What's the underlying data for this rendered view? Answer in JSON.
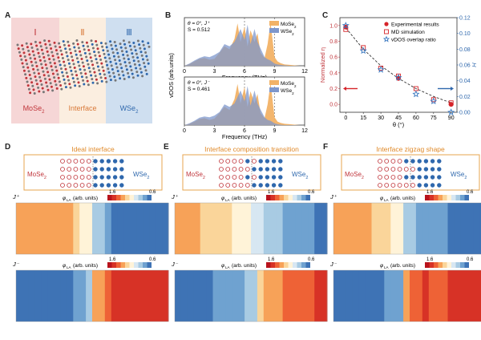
{
  "panels": {
    "A": {
      "label": "A",
      "regions": [
        {
          "numeral": "Ⅰ",
          "name_main": "MoSe",
          "name_sub": "2",
          "color": "#c0353b",
          "bg": "#f6d6d6"
        },
        {
          "numeral": "Ⅱ",
          "name_main": "Interface",
          "name_sub": "",
          "color": "#d97a3a",
          "bg": "#fbeee0"
        },
        {
          "numeral": "Ⅲ",
          "name_main": "WSe",
          "name_sub": "2",
          "color": "#2f68ad",
          "bg": "#cfdff0"
        }
      ]
    },
    "B": {
      "label": "B",
      "ylabel": "vDOS (arb.units)",
      "xlabel": "Frequency (THz)",
      "xticks": [
        "0",
        "3",
        "6",
        "9",
        "12"
      ],
      "legend": [
        {
          "main": "MoSe",
          "sub": "2",
          "color": "#f2b266"
        },
        {
          "main": "WSe",
          "sub": "2",
          "color": "#7e97cc"
        }
      ],
      "subplots": [
        {
          "info1": "θ = 0°, J⁺",
          "info2": "S = 0.512"
        },
        {
          "info1": "θ = 0°, J⁻",
          "info2": "S = 0.461"
        }
      ]
    },
    "C": {
      "label": "C",
      "ylabel_left": "Normalized η",
      "ylabel_right": "H",
      "xlabel": "θ (°)",
      "legend": [
        "Experimental results",
        "MD simulation",
        "vDOS overlap ratio"
      ]
    },
    "D": {
      "label": "D",
      "title": "Ideal interface",
      "mat_left_main": "MoSe",
      "mat_left_sub": "2",
      "mat_right_main": "WSe",
      "mat_right_sub": "2",
      "cb_label": "φ",
      "cb_sub": "LA",
      "cb_unit": " (arb. units)",
      "cb_min": "1.6",
      "cb_max": "0.6",
      "map_top": "J⁺",
      "map_bottom": "J⁻"
    },
    "E": {
      "label": "E",
      "title": "Interface composition transition",
      "mat_left_main": "MoSe",
      "mat_left_sub": "2",
      "mat_right_main": "WSe",
      "mat_right_sub": "2",
      "cb_label": "φ",
      "cb_sub": "LA",
      "cb_unit": " (arb. units)",
      "cb_min": "1.6",
      "cb_max": "0.6",
      "map_top": "J⁺",
      "map_bottom": "J⁻"
    },
    "F": {
      "label": "F",
      "title": "Interface zigzag shape",
      "mat_left_main": "MoSe",
      "mat_left_sub": "2",
      "mat_right_main": "WSe",
      "mat_right_sub": "2",
      "cb_label": "φ",
      "cb_sub": "LA",
      "cb_unit": " (arb. units)",
      "cb_min": "1.6",
      "cb_max": "0.6",
      "map_top": "J⁺",
      "map_bottom": "J⁻"
    }
  },
  "chart_data": [
    {
      "type": "area",
      "title": "",
      "xlabel": "Frequency (THz)",
      "ylabel": "vDOS (arb.units)",
      "xlim": [
        0,
        12
      ],
      "annotations": [
        "θ = 0°, J⁺",
        "S = 0.512"
      ],
      "series": [
        {
          "name": "MoSe2",
          "color": "#f2b266",
          "x": [
            0,
            0.5,
            1,
            1.5,
            2,
            2.5,
            3,
            3.5,
            4,
            4.5,
            5,
            5.3,
            5.6,
            6,
            6.3,
            6.6,
            7,
            7.3,
            7.6,
            8,
            8.3,
            8.6,
            9,
            9.3,
            9.6,
            10,
            10.5,
            11,
            11.5,
            12
          ],
          "y": [
            0,
            0.04,
            0.1,
            0.16,
            0.18,
            0.14,
            0.16,
            0.3,
            0.45,
            0.38,
            0.62,
            0.98,
            0.55,
            0.9,
            0.45,
            0.82,
            0.55,
            0.75,
            0.3,
            0.18,
            0.5,
            1.0,
            0.2,
            0.1,
            0.06,
            0.03,
            0.02,
            0.01,
            0.0,
            0
          ]
        },
        {
          "name": "WSe2",
          "color": "#7e97cc",
          "x": [
            0,
            0.5,
            1,
            1.5,
            2,
            2.5,
            3,
            3.5,
            4,
            4.5,
            5,
            5.3,
            5.6,
            6,
            6.3,
            6.6,
            7,
            7.3,
            7.6,
            8,
            8.3,
            8.6,
            9,
            9.3,
            9.6,
            10,
            10.5,
            11,
            11.5,
            12
          ],
          "y": [
            0,
            0.05,
            0.12,
            0.18,
            0.22,
            0.2,
            0.25,
            0.32,
            0.5,
            0.45,
            0.55,
            0.7,
            0.85,
            0.6,
            0.95,
            0.5,
            0.85,
            0.55,
            0.4,
            0.2,
            0.15,
            0.12,
            0.05,
            0.03,
            0.02,
            0.01,
            0.0,
            0.0,
            0,
            0
          ]
        }
      ]
    },
    {
      "type": "area",
      "title": "",
      "xlabel": "Frequency (THz)",
      "ylabel": "vDOS (arb.units)",
      "xlim": [
        0,
        12
      ],
      "annotations": [
        "θ = 0°, J⁻",
        "S = 0.461"
      ],
      "series": [
        {
          "name": "MoSe2",
          "color": "#f2b266",
          "x": [
            0,
            0.5,
            1,
            1.5,
            2,
            2.5,
            3,
            3.5,
            4,
            4.5,
            5,
            5.3,
            5.6,
            6,
            6.3,
            6.6,
            7,
            7.3,
            7.6,
            8,
            8.3,
            8.6,
            9,
            9.3,
            9.6,
            10,
            10.5,
            11,
            11.5,
            12
          ],
          "y": [
            0,
            0.03,
            0.08,
            0.14,
            0.16,
            0.12,
            0.15,
            0.28,
            0.42,
            0.35,
            0.6,
            0.95,
            0.5,
            0.88,
            0.42,
            0.78,
            0.5,
            0.72,
            0.28,
            0.16,
            0.48,
            0.98,
            0.18,
            0.08,
            0.05,
            0.03,
            0.02,
            0.01,
            0.0,
            0
          ]
        },
        {
          "name": "WSe2",
          "color": "#7e97cc",
          "x": [
            0,
            0.5,
            1,
            1.5,
            2,
            2.5,
            3,
            3.5,
            4,
            4.5,
            5,
            5.3,
            5.6,
            6,
            6.3,
            6.6,
            7,
            7.3,
            7.6,
            8,
            8.3,
            8.6,
            9,
            9.3,
            9.6,
            10,
            10.5,
            11,
            11.5,
            12
          ],
          "y": [
            0,
            0.04,
            0.1,
            0.17,
            0.2,
            0.18,
            0.22,
            0.3,
            0.48,
            0.42,
            0.5,
            0.65,
            0.8,
            0.55,
            0.9,
            0.45,
            0.8,
            0.5,
            0.36,
            0.18,
            0.12,
            0.1,
            0.04,
            0.02,
            0.01,
            0.0,
            0.0,
            0.0,
            0,
            0
          ]
        }
      ]
    },
    {
      "type": "scatter",
      "title": "",
      "xlabel": "θ (°)",
      "ylabel": "Normalized η",
      "ylabel_right": "H",
      "xlim": [
        -5,
        95
      ],
      "ylim": [
        -0.1,
        1.1
      ],
      "ylim_right": [
        0.0,
        0.12
      ],
      "xticks": [
        0,
        15,
        30,
        45,
        60,
        75,
        90
      ],
      "yticks": [
        0.0,
        0.2,
        0.4,
        0.6,
        0.8,
        1.0
      ],
      "yticks_right": [
        0.0,
        0.02,
        0.04,
        0.06,
        0.08,
        0.1,
        0.12
      ],
      "series": [
        {
          "name": "Experimental results",
          "axis": "left",
          "color": "#d6242a",
          "x": [
            0,
            45,
            90
          ],
          "y": [
            0.98,
            0.33,
            0.0
          ]
        },
        {
          "name": "MD simulation",
          "axis": "left",
          "color": "#d6242a",
          "x": [
            0,
            15,
            30,
            45,
            60,
            75,
            90
          ],
          "y": [
            0.95,
            0.72,
            0.46,
            0.36,
            0.2,
            0.06,
            0.02
          ]
        },
        {
          "name": "vDOS overlap ratio",
          "axis": "right",
          "color": "#3a78c0",
          "x": [
            0,
            15,
            30,
            45,
            60,
            75,
            90
          ],
          "y": [
            0.11,
            0.078,
            0.054,
            0.044,
            0.023,
            0.014,
            0.0
          ]
        },
        {
          "name": "fit",
          "axis": "left",
          "color": "#333333",
          "x": [
            0,
            15,
            30,
            45,
            60,
            75,
            90
          ],
          "y": [
            0.97,
            0.7,
            0.49,
            0.33,
            0.2,
            0.1,
            0.02
          ]
        }
      ]
    }
  ]
}
